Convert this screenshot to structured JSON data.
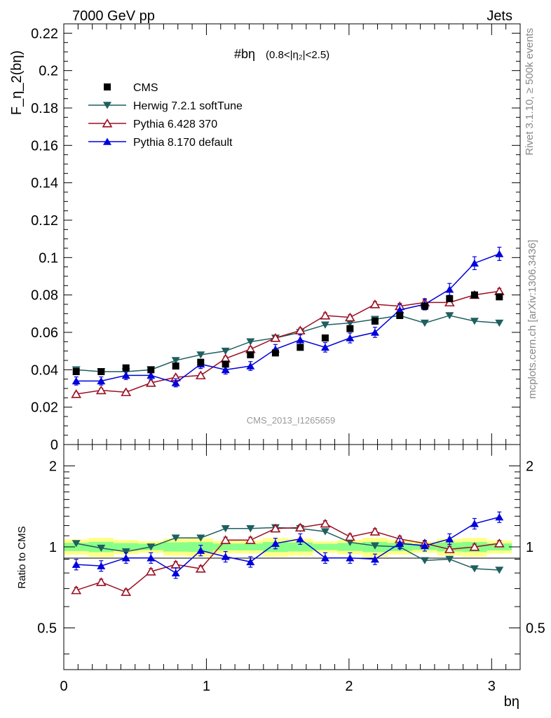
{
  "header": {
    "left": "7000 GeV pp",
    "right": "Jets"
  },
  "side": {
    "rivet": "Rivet 3.1.10, ≥ 500k events",
    "mcplots": "mcplots.cern.ch [arXiv:1306.3436]"
  },
  "watermark": "CMS_2013_I1265659",
  "chart_data": [
    {
      "type": "scatter",
      "title": "#bη",
      "title_range": "(0.8<|η₂|<2.5)",
      "ylabel": "F_η_2(bη)",
      "xlabel": "bη",
      "xlim": [
        0,
        3.2
      ],
      "ylim": [
        0,
        0.225
      ],
      "x_ticks": [
        0,
        1,
        2,
        3
      ],
      "x_tick_labels": [
        "0",
        "1",
        "2",
        "3"
      ],
      "y_ticks": [
        0,
        0.02,
        0.04,
        0.06,
        0.08,
        0.1,
        0.12,
        0.14,
        0.16,
        0.18,
        0.2,
        0.22
      ],
      "y_tick_labels": [
        "0",
        "0.02",
        "0.04",
        "0.06",
        "0.08",
        "0.1",
        "0.12",
        "0.14",
        "0.16",
        "0.18",
        "0.2",
        "0.22"
      ],
      "x": [
        0.087,
        0.262,
        0.436,
        0.611,
        0.785,
        0.96,
        1.134,
        1.309,
        1.484,
        1.658,
        1.833,
        2.007,
        2.182,
        2.356,
        2.531,
        2.705,
        2.88,
        3.054
      ],
      "series": [
        {
          "name": "CMS",
          "color": "#000000",
          "marker": "square",
          "values": [
            0.039,
            0.039,
            0.041,
            0.04,
            0.042,
            0.044,
            0.043,
            0.048,
            0.049,
            0.052,
            0.057,
            0.062,
            0.066,
            0.069,
            0.074,
            0.078,
            0.08,
            0.079
          ]
        },
        {
          "name": "Herwig 7.2.1 softTune",
          "color": "#1f5f5f",
          "marker": "tri-down",
          "values": [
            0.04,
            0.039,
            0.039,
            0.04,
            0.045,
            0.048,
            0.05,
            0.055,
            0.057,
            0.06,
            0.064,
            0.065,
            0.067,
            0.069,
            0.065,
            0.069,
            0.066,
            0.065
          ]
        },
        {
          "name": "Pythia 6.428 370",
          "color": "#9a0f22",
          "marker": "tri-up-open",
          "values": [
            0.027,
            0.029,
            0.028,
            0.033,
            0.036,
            0.037,
            0.046,
            0.051,
            0.057,
            0.061,
            0.069,
            0.068,
            0.075,
            0.074,
            0.076,
            0.076,
            0.08,
            0.082
          ]
        },
        {
          "name": "Pythia 8.170 default",
          "color": "#0000dd",
          "marker": "tri-up",
          "values": [
            0.034,
            0.034,
            0.037,
            0.037,
            0.033,
            0.043,
            0.04,
            0.042,
            0.051,
            0.056,
            0.052,
            0.057,
            0.06,
            0.072,
            0.075,
            0.083,
            0.097,
            0.102
          ]
        }
      ]
    },
    {
      "type": "scatter",
      "ylabel": "Ratio to CMS",
      "xlim": [
        0,
        3.2
      ],
      "ylim": [
        0.35,
        2.4
      ],
      "y_scale": "log",
      "y_ticks": [
        0.5,
        1,
        2
      ],
      "y_tick_labels": [
        "0.5",
        "1",
        "2"
      ],
      "band_inner_frac": 0.035,
      "band_outer_frac": 0.065,
      "band_colors": [
        "#ffff88",
        "#88ff88"
      ],
      "series": [
        {
          "name": "Herwig 7.2.1 softTune",
          "values": [
            1.03,
            0.99,
            0.96,
            1.0,
            1.08,
            1.08,
            1.17,
            1.17,
            1.18,
            1.17,
            1.14,
            1.04,
            1.01,
            1.0,
            0.89,
            0.9,
            0.83,
            0.82
          ]
        },
        {
          "name": "Pythia 6.428 370",
          "values": [
            0.69,
            0.74,
            0.68,
            0.81,
            0.86,
            0.83,
            1.06,
            1.06,
            1.17,
            1.18,
            1.22,
            1.09,
            1.14,
            1.07,
            1.03,
            0.98,
            1.0,
            1.03
          ]
        },
        {
          "name": "Pythia 8.170 default",
          "values": [
            0.86,
            0.85,
            0.91,
            0.91,
            0.8,
            0.97,
            0.92,
            0.88,
            1.03,
            1.07,
            0.91,
            0.91,
            0.9,
            1.03,
            1.01,
            1.07,
            1.22,
            1.29
          ]
        }
      ]
    }
  ]
}
